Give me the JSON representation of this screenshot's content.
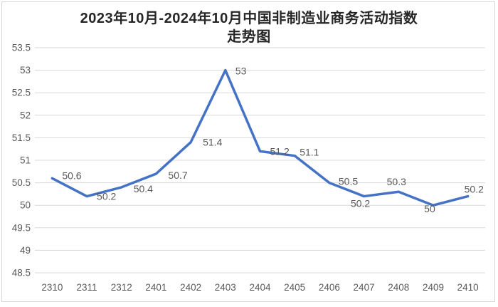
{
  "chart_data": {
    "type": "line",
    "title": "2023年10月-2024年10月中国非制造业商务活动指数走势图",
    "title_lines": [
      "2023年10月-2024年10月中国非制造业商务活动指数",
      "走势图"
    ],
    "categories": [
      "2310",
      "2311",
      "2312",
      "2401",
      "2402",
      "2403",
      "2404",
      "2405",
      "2406",
      "2407",
      "2408",
      "2409",
      "2410"
    ],
    "values": [
      50.6,
      50.2,
      50.4,
      50.7,
      51.4,
      53,
      51.2,
      51.1,
      50.5,
      50.2,
      50.3,
      50,
      50.2
    ],
    "data_labels": [
      "50.6",
      "50.2",
      "50.4",
      "50.7",
      "51.4",
      "53",
      "51.2",
      "51.1",
      "50.5",
      "50.2",
      "50.3",
      "50",
      "50.2"
    ],
    "ylim": [
      48.5,
      53.5
    ],
    "ytick_step": 0.5,
    "yticks": [
      53.5,
      53,
      52.5,
      52,
      51.5,
      51,
      50.5,
      50,
      49.5,
      49,
      48.5
    ],
    "ytick_labels": [
      "53.5",
      "53",
      "52.5",
      "52",
      "51.5",
      "51",
      "50.5",
      "50",
      "49.5",
      "49",
      "48.5"
    ],
    "xlabel": "",
    "ylabel": "",
    "grid": true,
    "legend": "none",
    "colors": {
      "line": "#4472C4",
      "grid": "#D9D9D9",
      "axis_text": "#595959",
      "data_label_text": "#595959",
      "title_text": "#262626",
      "frame_border": "#D6D6D6",
      "background": "#FFFFFF"
    },
    "label_offsets": [
      [
        14,
        -4,
        "start"
      ],
      [
        14,
        0,
        "start"
      ],
      [
        17,
        2,
        "start"
      ],
      [
        17,
        2,
        "start"
      ],
      [
        17,
        0,
        "start"
      ],
      [
        14,
        1,
        "start"
      ],
      [
        14,
        0,
        "start"
      ],
      [
        7,
        -5,
        "start"
      ],
      [
        13,
        -2,
        "start"
      ],
      [
        -5,
        10,
        "middle"
      ],
      [
        -3,
        -14,
        "middle"
      ],
      [
        -5,
        5,
        "middle"
      ],
      [
        -5,
        -10,
        "start"
      ]
    ]
  }
}
